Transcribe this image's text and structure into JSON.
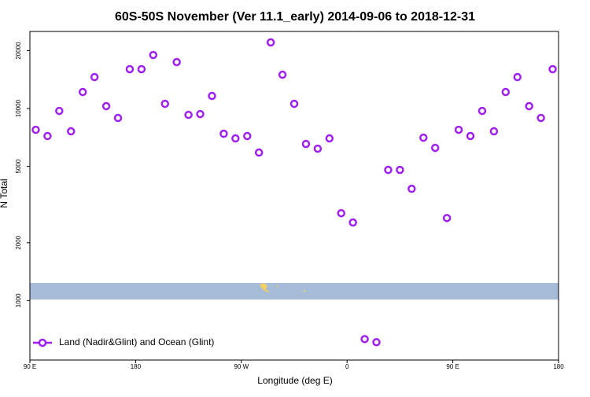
{
  "chart_data": {
    "type": "scatter",
    "title": "60S-50S November (Ver 11.1_early)   2014-09-06 to 2018-12-31",
    "x_label": "Longitude (deg E)",
    "y_label": "N Total",
    "log_y": true,
    "legend": "bottomleft",
    "xlim": [
      90,
      540
    ],
    "xticks": [
      {
        "value": 90,
        "label": "90 E"
      },
      {
        "value": 180,
        "label": "180"
      },
      {
        "value": 270,
        "label": "90 W"
      },
      {
        "value": 360,
        "label": "0"
      },
      {
        "value": 450,
        "label": "90 E"
      },
      {
        "value": 540,
        "label": "180"
      }
    ],
    "ylim": [
      490,
      25200
    ],
    "yticks": [
      1000,
      2000,
      5000,
      10000,
      20000
    ],
    "series": [
      {
        "name": "Land (Nadir&Glint) and Ocean (Glint)",
        "color": "#a020f0",
        "x": [
          95,
          105,
          115,
          125,
          135,
          145,
          155,
          165,
          175,
          185,
          195,
          205,
          215,
          225,
          235,
          245,
          255,
          265,
          275,
          285,
          295,
          305,
          315,
          325,
          335,
          345,
          355,
          365,
          375,
          385,
          395,
          405,
          415,
          425,
          435,
          445,
          455,
          465,
          475,
          485,
          495,
          505,
          515,
          525,
          535
        ],
        "values": [
          7750,
          7190,
          9720,
          7610,
          12190,
          14580,
          10290,
          8930,
          16030,
          16030,
          19000,
          10580,
          17450,
          9270,
          9360,
          11630,
          7390,
          6990,
          7190,
          5900,
          22100,
          15000,
          10580,
          6540,
          6180,
          6990,
          2850,
          2550,
          630,
          607,
          4790,
          4790,
          3820,
          7050,
          6240,
          2690,
          7750,
          7190,
          9720,
          7610,
          12190,
          14580,
          10290,
          8930,
          16030
        ]
      }
    ]
  }
}
